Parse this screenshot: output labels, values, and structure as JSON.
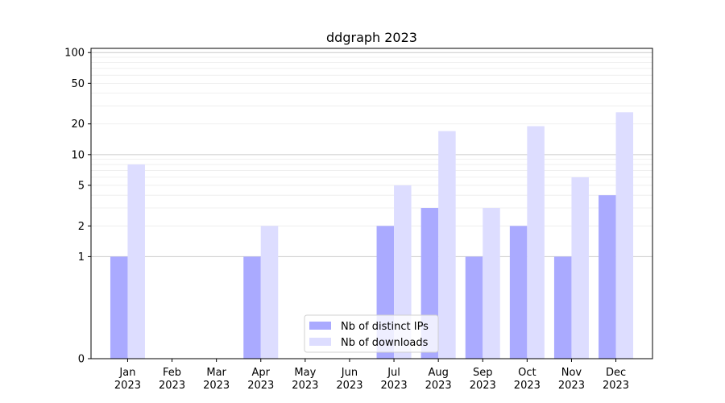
{
  "chart_data": {
    "type": "bar",
    "title": "ddgraph 2023",
    "xlabel": "",
    "ylabel": "",
    "y_scale": "symlog",
    "ylim": [
      0,
      110
    ],
    "y_ticks": [
      0,
      1,
      2,
      5,
      10,
      20,
      50,
      100
    ],
    "grid": true,
    "legend_position": "bottom-center",
    "categories": [
      "Jan\n2023",
      "Feb\n2023",
      "Mar\n2023",
      "Apr\n2023",
      "May\n2023",
      "Jun\n2023",
      "Jul\n2023",
      "Aug\n2023",
      "Sep\n2023",
      "Oct\n2023",
      "Nov\n2023",
      "Dec\n2023"
    ],
    "series": [
      {
        "name": "Nb of distinct IPs",
        "color": "#aaaaff",
        "values": [
          1,
          0,
          0,
          1,
          0,
          0,
          2,
          3,
          1,
          2,
          1,
          4
        ]
      },
      {
        "name": "Nb of downloads",
        "color": "#ddddff",
        "values": [
          8,
          0,
          0,
          2,
          0,
          0,
          5,
          17,
          3,
          19,
          6,
          26
        ]
      }
    ]
  }
}
